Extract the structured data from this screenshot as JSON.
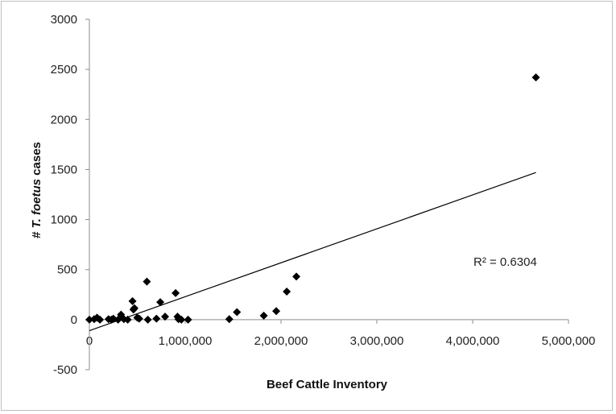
{
  "chart_data": {
    "type": "scatter",
    "title": "",
    "xlabel": "Beef Cattle Inventory",
    "ylabel_prefix": "# ",
    "ylabel_italic": "T. foetus",
    "ylabel_suffix": " cases",
    "xlim": [
      0,
      5000000
    ],
    "ylim": [
      -500,
      3000
    ],
    "x_ticks": [
      0,
      1000000,
      2000000,
      3000000,
      4000000,
      5000000
    ],
    "x_tick_labels": [
      "0",
      "1,000,000",
      "2,000,000",
      "3,000,000",
      "4,000,000",
      "5,000,000"
    ],
    "y_ticks": [
      -500,
      0,
      500,
      1000,
      1500,
      2000,
      2500,
      3000
    ],
    "y_tick_labels": [
      "-500",
      "0",
      "500",
      "1000",
      "1500",
      "2000",
      "2500",
      "3000"
    ],
    "grid": false,
    "legend": "none",
    "marker": "diamond",
    "marker_color": "#000000",
    "points": [
      {
        "x": 0,
        "y": 0
      },
      {
        "x": 50000,
        "y": 5
      },
      {
        "x": 80000,
        "y": 20
      },
      {
        "x": 110000,
        "y": 0
      },
      {
        "x": 200000,
        "y": 5
      },
      {
        "x": 230000,
        "y": 0
      },
      {
        "x": 250000,
        "y": 10
      },
      {
        "x": 300000,
        "y": 0
      },
      {
        "x": 330000,
        "y": 50
      },
      {
        "x": 360000,
        "y": 5
      },
      {
        "x": 400000,
        "y": 0
      },
      {
        "x": 450000,
        "y": 185
      },
      {
        "x": 460000,
        "y": 100
      },
      {
        "x": 470000,
        "y": 115
      },
      {
        "x": 500000,
        "y": 20
      },
      {
        "x": 520000,
        "y": 10
      },
      {
        "x": 600000,
        "y": 380
      },
      {
        "x": 610000,
        "y": 0
      },
      {
        "x": 700000,
        "y": 10
      },
      {
        "x": 740000,
        "y": 175
      },
      {
        "x": 790000,
        "y": 30
      },
      {
        "x": 900000,
        "y": 265
      },
      {
        "x": 920000,
        "y": 30
      },
      {
        "x": 930000,
        "y": 5
      },
      {
        "x": 960000,
        "y": 0
      },
      {
        "x": 1030000,
        "y": 0
      },
      {
        "x": 1460000,
        "y": 5
      },
      {
        "x": 1540000,
        "y": 75
      },
      {
        "x": 1820000,
        "y": 40
      },
      {
        "x": 1950000,
        "y": 85
      },
      {
        "x": 2060000,
        "y": 280
      },
      {
        "x": 2160000,
        "y": 430
      },
      {
        "x": 4660000,
        "y": 2420
      }
    ],
    "trendline": {
      "type": "linear",
      "x_start": 0,
      "y_start": -110,
      "x_end": 4660000,
      "y_end": 1470
    },
    "annotation": "R² = 0.6304"
  }
}
